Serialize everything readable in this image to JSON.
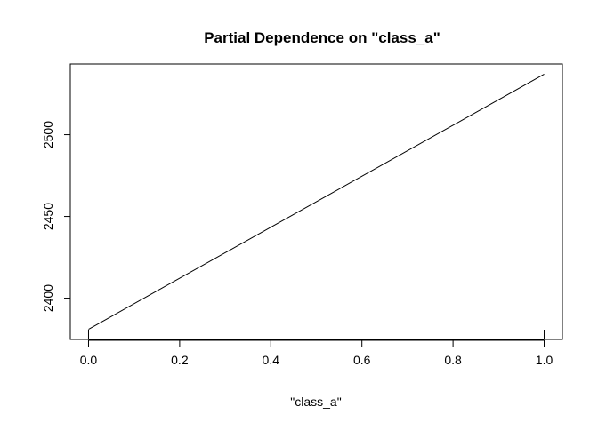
{
  "chart_data": {
    "type": "line",
    "title": "Partial Dependence on \"class_a\"",
    "xlabel": "\"class_a\"",
    "ylabel": "",
    "x": [
      0.0,
      1.0
    ],
    "series": [
      {
        "values": [
          2381,
          2537
        ]
      }
    ],
    "xticks": [
      0.0,
      0.2,
      0.4,
      0.6,
      0.8,
      1.0
    ],
    "xtick_labels": [
      "0.0",
      "0.2",
      "0.4",
      "0.6",
      "0.8",
      "1.0"
    ],
    "yticks": [
      2400,
      2450,
      2500
    ],
    "ytick_labels": [
      "2400",
      "2450",
      "2500"
    ],
    "xlim": [
      -0.04,
      1.04
    ],
    "ylim": [
      2374.76,
      2543.24
    ],
    "grid": false,
    "legend": "none",
    "rug": [
      0.0,
      1.0
    ],
    "line_color": "#000000"
  }
}
